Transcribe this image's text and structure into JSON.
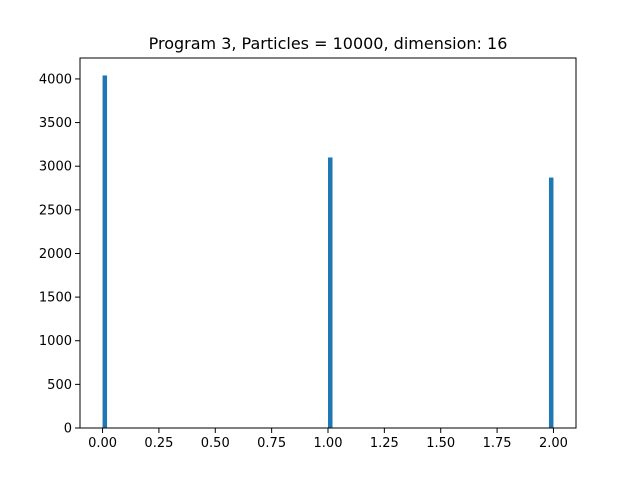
{
  "chart_data": {
    "type": "bar",
    "title": "Program 3, Particles = 10000, dimension: 16",
    "xlabel": "",
    "ylabel": "",
    "xlim": [
      -0.1,
      2.1
    ],
    "ylim": [
      0,
      4240
    ],
    "grid": false,
    "bar_color": "#1f77b4",
    "bin_width": 0.02,
    "bins": [
      {
        "x": 0.0,
        "value": 4040
      },
      {
        "x": 1.0,
        "value": 3100
      },
      {
        "x": 1.98,
        "value": 2870
      }
    ],
    "xticks": [
      0.0,
      0.25,
      0.5,
      0.75,
      1.0,
      1.25,
      1.5,
      1.75,
      2.0
    ],
    "xtick_labels": [
      "0.00",
      "0.25",
      "0.50",
      "0.75",
      "1.00",
      "1.25",
      "1.50",
      "1.75",
      "2.00"
    ],
    "yticks": [
      0,
      500,
      1000,
      1500,
      2000,
      2500,
      3000,
      3500,
      4000
    ],
    "ytick_labels": [
      "0",
      "500",
      "1000",
      "1500",
      "2000",
      "2500",
      "3000",
      "3500",
      "4000"
    ]
  }
}
